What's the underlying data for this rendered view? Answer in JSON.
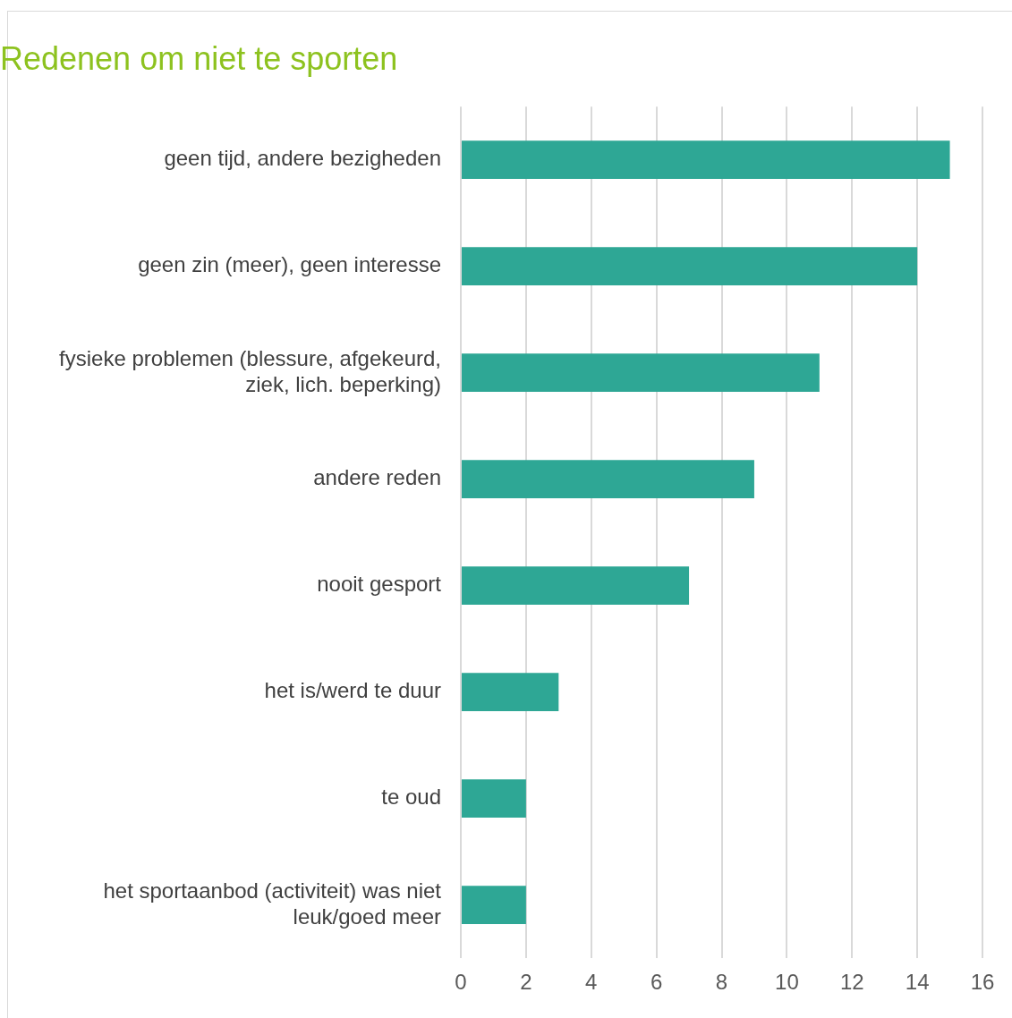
{
  "chart_data": {
    "type": "bar",
    "orientation": "horizontal",
    "title": "Redenen om niet te sporten",
    "categories": [
      "geen tijd, andere bezigheden",
      "geen zin (meer), geen interesse",
      "fysieke problemen (blessure, afgekeurd, ziek, lich. beperking)",
      "andere reden",
      "nooit gesport",
      "het is/werd te duur",
      "te oud",
      "het sportaanbod (activiteit) was niet leuk/goed meer"
    ],
    "values": [
      15,
      14,
      11,
      9,
      7,
      3,
      2,
      2
    ],
    "color": "#2ea795",
    "xlim": [
      0,
      16
    ],
    "xticks": [
      0,
      2,
      4,
      6,
      8,
      10,
      12,
      14,
      16
    ],
    "grid": "x",
    "legend": false
  }
}
